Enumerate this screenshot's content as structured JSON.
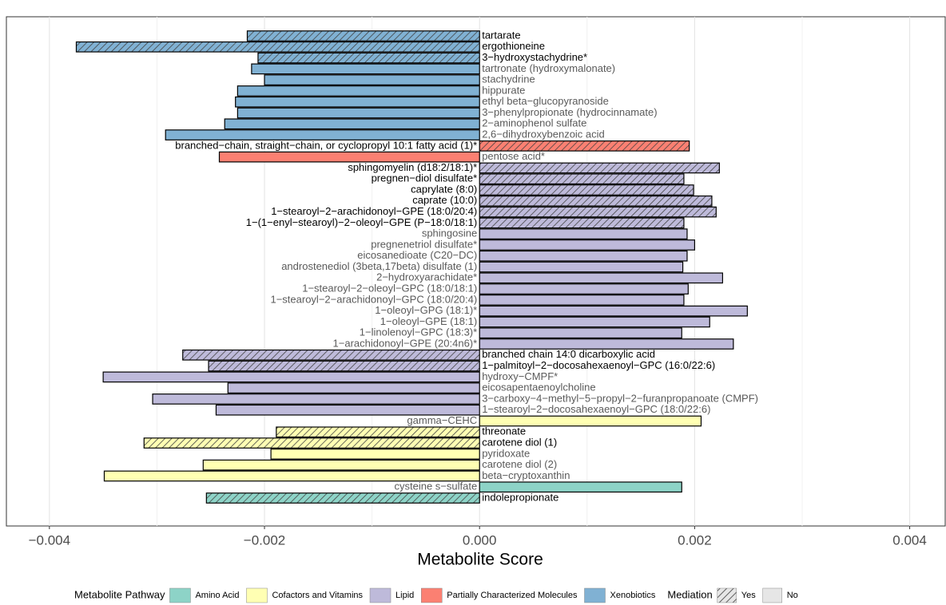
{
  "chart_data": {
    "type": "bar",
    "orientation": "horizontal",
    "x_label": "Metabolite Score",
    "xlim": [
      -0.0044,
      0.00433
    ],
    "xticks": [
      {
        "value": -0.004,
        "label": "−0.004"
      },
      {
        "value": -0.002,
        "label": "−0.002"
      },
      {
        "value": 0,
        "label": "0.000"
      },
      {
        "value": 0.002,
        "label": "0.002"
      },
      {
        "value": 0.004,
        "label": "0.004"
      }
    ],
    "minor_xticks": [
      -0.003,
      -0.001,
      0.001,
      0.003
    ],
    "grid": true,
    "categories": [
      "tartarate",
      "ergothioneine",
      "3−hydroxystachydrine*",
      "tartronate (hydroxymalonate)",
      "stachydrine",
      "hippurate",
      "ethyl beta−glucopyranoside",
      "3−phenylpropionate (hydrocinnamate)",
      "2−aminophenol sulfate",
      "2,6−dihydroxybenzoic acid",
      "branched−chain, straight−chain, or cyclopropyl 10:1 fatty acid (1)*",
      "pentose acid*",
      "sphingomyelin (d18:2/18:1)*",
      "pregnen−diol disulfate*",
      "caprylate (8:0)",
      "caprate (10:0)",
      "1−stearoyl−2−arachidonoyl−GPE (18:0/20:4)",
      "1−(1−enyl−stearoyl)−2−oleoyl−GPE (P−18:0/18:1)",
      "sphingosine",
      "pregnenetriol disulfate*",
      "eicosanedioate (C20−DC)",
      "androstenediol (3beta,17beta) disulfate (1)",
      "2−hydroxyarachidate*",
      "1−stearoyl−2−oleoyl−GPC (18:0/18:1)",
      "1−stearoyl−2−arachidonoyl−GPC (18:0/20:4)",
      "1−oleoyl−GPG (18:1)*",
      "1−oleoyl−GPE (18:1)",
      "1−linolenoyl−GPC (18:3)*",
      "1−arachidonoyl−GPE (20:4n6)*",
      "branched chain 14:0 dicarboxylic acid",
      "1−palmitoyl−2−docosahexaenoyl−GPC (16:0/22:6)",
      "hydroxy−CMPF*",
      "eicosapentaenoylcholine",
      "3−carboxy−4−methyl−5−propyl−2−furanpropanoate (CMPF)",
      "1−stearoyl−2−docosahexaenoyl−GPC (18:0/22:6)",
      "gamma−CEHC",
      "threonate",
      "carotene diol (1)",
      "pyridoxate",
      "carotene diol (2)",
      "beta−cryptoxanthin",
      "cysteine s−sulfate",
      "indolepropionate"
    ],
    "values": [
      -0.00216,
      -0.00375,
      -0.00206,
      -0.00212,
      -0.002,
      -0.00225,
      -0.00227,
      -0.00225,
      -0.00237,
      -0.00292,
      0.00195,
      -0.00242,
      0.00223,
      0.0019,
      0.00199,
      0.00216,
      0.0022,
      0.0019,
      0.00193,
      0.002,
      0.00193,
      0.00189,
      0.00226,
      0.00194,
      0.0019,
      0.00249,
      0.00214,
      0.00188,
      0.00236,
      -0.00276,
      -0.00252,
      -0.0035,
      -0.00234,
      -0.00304,
      -0.00245,
      0.00206,
      -0.00189,
      -0.00312,
      -0.00194,
      -0.00257,
      -0.00349,
      0.00188,
      -0.00254
    ],
    "pathway": [
      "Xenobiotics",
      "Xenobiotics",
      "Xenobiotics",
      "Xenobiotics",
      "Xenobiotics",
      "Xenobiotics",
      "Xenobiotics",
      "Xenobiotics",
      "Xenobiotics",
      "Xenobiotics",
      "Partially Characterized Molecules",
      "Partially Characterized Molecules",
      "Lipid",
      "Lipid",
      "Lipid",
      "Lipid",
      "Lipid",
      "Lipid",
      "Lipid",
      "Lipid",
      "Lipid",
      "Lipid",
      "Lipid",
      "Lipid",
      "Lipid",
      "Lipid",
      "Lipid",
      "Lipid",
      "Lipid",
      "Lipid",
      "Lipid",
      "Lipid",
      "Lipid",
      "Lipid",
      "Lipid",
      "Cofactors and Vitamins",
      "Cofactors and Vitamins",
      "Cofactors and Vitamins",
      "Cofactors and Vitamins",
      "Cofactors and Vitamins",
      "Cofactors and Vitamins",
      "Amino Acid",
      "Amino Acid"
    ],
    "mediation": [
      "Yes",
      "Yes",
      "Yes",
      "No",
      "No",
      "No",
      "No",
      "No",
      "No",
      "No",
      "Yes",
      "No",
      "Yes",
      "Yes",
      "Yes",
      "Yes",
      "Yes",
      "Yes",
      "No",
      "No",
      "No",
      "No",
      "No",
      "No",
      "No",
      "No",
      "No",
      "No",
      "No",
      "Yes",
      "Yes",
      "No",
      "No",
      "No",
      "No",
      "No",
      "Yes",
      "Yes",
      "No",
      "No",
      "No",
      "No",
      "Yes"
    ],
    "legend": {
      "pathway_title": "Metabolite Pathway",
      "pathways": [
        {
          "name": "Amino Acid",
          "color": "#8dd3c7"
        },
        {
          "name": "Cofactors and Vitamins",
          "color": "#ffffb3"
        },
        {
          "name": "Lipid",
          "color": "#bebada"
        },
        {
          "name": "Partially Characterized Molecules",
          "color": "#fb8072"
        },
        {
          "name": "Xenobiotics",
          "color": "#80b1d3"
        }
      ],
      "mediation_title": "Mediation",
      "mediation_levels": [
        {
          "name": "Yes",
          "hatched": true
        },
        {
          "name": "No",
          "hatched": false
        }
      ]
    }
  }
}
